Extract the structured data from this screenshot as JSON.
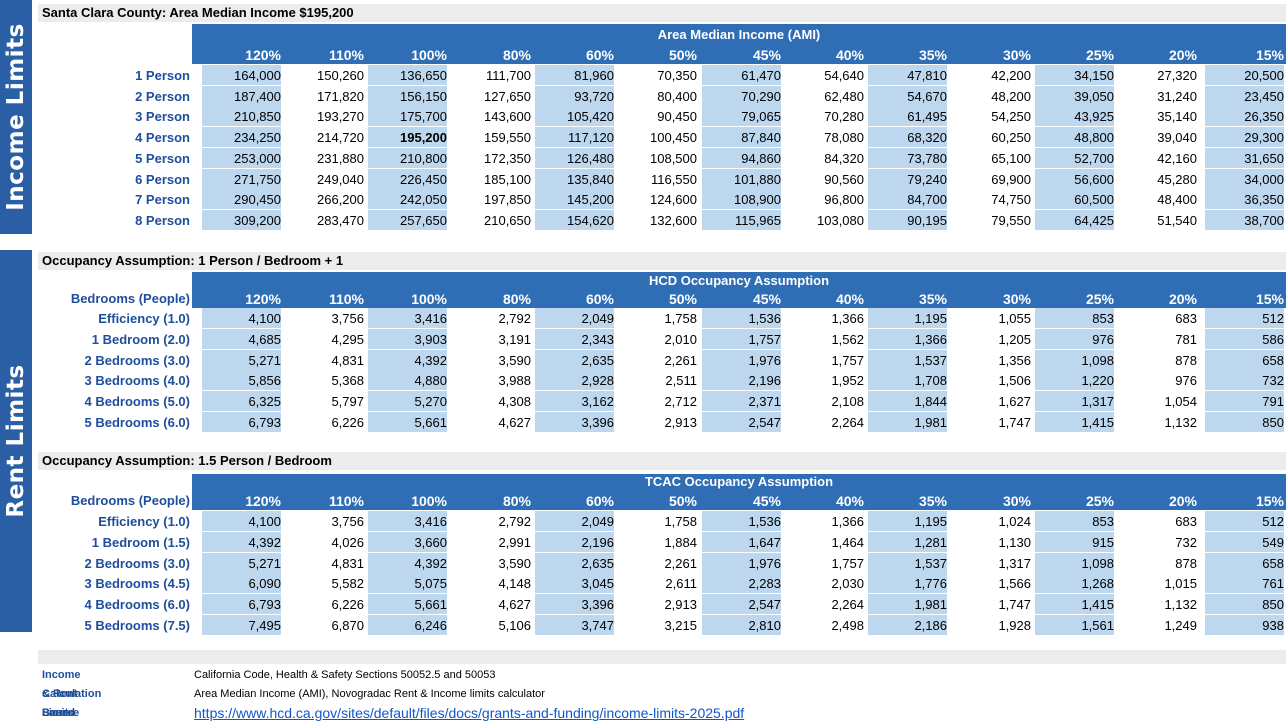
{
  "side_labels": {
    "income": "Income Limits",
    "rent": "Rent Limits"
  },
  "income": {
    "title": "Santa Clara County: Area Median Income $195,200",
    "band": "Area Median Income (AMI)",
    "columns": [
      "120%",
      "110%",
      "100%",
      "80%",
      "60%",
      "50%",
      "45%",
      "40%",
      "35%",
      "30%",
      "25%",
      "20%",
      "15%"
    ],
    "rows": [
      {
        "label": "1 Person",
        "values": [
          "164,000",
          "150,260",
          "136,650",
          "111,700",
          "81,960",
          "70,350",
          "61,470",
          "54,640",
          "47,810",
          "42,200",
          "34,150",
          "27,320",
          "20,500"
        ]
      },
      {
        "label": "2 Person",
        "values": [
          "187,400",
          "171,820",
          "156,150",
          "127,650",
          "93,720",
          "80,400",
          "70,290",
          "62,480",
          "54,670",
          "48,200",
          "39,050",
          "31,240",
          "23,450"
        ]
      },
      {
        "label": "3 Person",
        "values": [
          "210,850",
          "193,270",
          "175,700",
          "143,600",
          "105,420",
          "90,450",
          "79,065",
          "70,280",
          "61,495",
          "54,250",
          "43,925",
          "35,140",
          "26,350"
        ]
      },
      {
        "label": "4 Person",
        "values": [
          "234,250",
          "214,720",
          "195,200",
          "159,550",
          "117,120",
          "100,450",
          "87,840",
          "78,080",
          "68,320",
          "60,250",
          "48,800",
          "39,040",
          "29,300"
        ]
      },
      {
        "label": "5 Person",
        "values": [
          "253,000",
          "231,880",
          "210,800",
          "172,350",
          "126,480",
          "108,500",
          "94,860",
          "84,320",
          "73,780",
          "65,100",
          "52,700",
          "42,160",
          "31,650"
        ]
      },
      {
        "label": "6 Person",
        "values": [
          "271,750",
          "249,040",
          "226,450",
          "185,100",
          "135,840",
          "116,550",
          "101,880",
          "90,560",
          "79,240",
          "69,900",
          "56,600",
          "45,280",
          "34,000"
        ]
      },
      {
        "label": "7 Person",
        "values": [
          "290,450",
          "266,200",
          "242,050",
          "197,850",
          "145,200",
          "124,600",
          "108,900",
          "96,800",
          "84,700",
          "74,750",
          "60,500",
          "48,400",
          "36,350"
        ]
      },
      {
        "label": "8 Person",
        "values": [
          "309,200",
          "283,470",
          "257,650",
          "210,650",
          "154,620",
          "132,600",
          "115,965",
          "103,080",
          "90,195",
          "79,550",
          "64,425",
          "51,540",
          "38,700"
        ]
      }
    ]
  },
  "hcd": {
    "title": "Occupancy Assumption: 1 Person / Bedroom + 1",
    "band": "HCD Occupancy Assumption",
    "row_header": "Bedrooms (People)",
    "columns": [
      "120%",
      "110%",
      "100%",
      "80%",
      "60%",
      "50%",
      "45%",
      "40%",
      "35%",
      "30%",
      "25%",
      "20%",
      "15%"
    ],
    "rows": [
      {
        "label": "Efficiency (1.0)",
        "values": [
          "4,100",
          "3,756",
          "3,416",
          "2,792",
          "2,049",
          "1,758",
          "1,536",
          "1,366",
          "1,195",
          "1,055",
          "853",
          "683",
          "512"
        ]
      },
      {
        "label": "1 Bedroom (2.0)",
        "values": [
          "4,685",
          "4,295",
          "3,903",
          "3,191",
          "2,343",
          "2,010",
          "1,757",
          "1,562",
          "1,366",
          "1,205",
          "976",
          "781",
          "586"
        ]
      },
      {
        "label": "2 Bedrooms (3.0)",
        "values": [
          "5,271",
          "4,831",
          "4,392",
          "3,590",
          "2,635",
          "2,261",
          "1,976",
          "1,757",
          "1,537",
          "1,356",
          "1,098",
          "878",
          "658"
        ]
      },
      {
        "label": "3 Bedrooms (4.0)",
        "values": [
          "5,856",
          "5,368",
          "4,880",
          "3,988",
          "2,928",
          "2,511",
          "2,196",
          "1,952",
          "1,708",
          "1,506",
          "1,220",
          "976",
          "732"
        ]
      },
      {
        "label": "4 Bedrooms (5.0)",
        "values": [
          "6,325",
          "5,797",
          "5,270",
          "4,308",
          "3,162",
          "2,712",
          "2,371",
          "2,108",
          "1,844",
          "1,627",
          "1,317",
          "1,054",
          "791"
        ]
      },
      {
        "label": "5 Bedrooms (6.0)",
        "values": [
          "6,793",
          "6,226",
          "5,661",
          "4,627",
          "3,396",
          "2,913",
          "2,547",
          "2,264",
          "1,981",
          "1,747",
          "1,415",
          "1,132",
          "850"
        ]
      }
    ]
  },
  "tcac": {
    "title": "Occupancy Assumption: 1.5 Person / Bedroom",
    "band": "TCAC Occupancy Assumption",
    "row_header": "Bedrooms (People)",
    "columns": [
      "120%",
      "110%",
      "100%",
      "80%",
      "60%",
      "50%",
      "45%",
      "40%",
      "35%",
      "30%",
      "25%",
      "20%",
      "15%"
    ],
    "rows": [
      {
        "label": "Efficiency (1.0)",
        "values": [
          "4,100",
          "3,756",
          "3,416",
          "2,792",
          "2,049",
          "1,758",
          "1,536",
          "1,366",
          "1,195",
          "1,024",
          "853",
          "683",
          "512"
        ]
      },
      {
        "label": "1 Bedroom (1.5)",
        "values": [
          "4,392",
          "4,026",
          "3,660",
          "2,991",
          "2,196",
          "1,884",
          "1,647",
          "1,464",
          "1,281",
          "1,130",
          "915",
          "732",
          "549"
        ]
      },
      {
        "label": "2 Bedrooms (3.0)",
        "values": [
          "5,271",
          "4,831",
          "4,392",
          "3,590",
          "2,635",
          "2,261",
          "1,976",
          "1,757",
          "1,537",
          "1,317",
          "1,098",
          "878",
          "658"
        ]
      },
      {
        "label": "3 Bedrooms (4.5)",
        "values": [
          "6,090",
          "5,582",
          "5,075",
          "4,148",
          "3,045",
          "2,611",
          "2,283",
          "2,030",
          "1,776",
          "1,566",
          "1,268",
          "1,015",
          "761"
        ]
      },
      {
        "label": "4 Bedrooms (6.0)",
        "values": [
          "6,793",
          "6,226",
          "5,661",
          "4,627",
          "3,396",
          "2,913",
          "2,547",
          "2,264",
          "1,981",
          "1,747",
          "1,415",
          "1,132",
          "850"
        ]
      },
      {
        "label": "5 Bedrooms (7.5)",
        "values": [
          "7,495",
          "6,870",
          "6,246",
          "5,106",
          "3,747",
          "3,215",
          "2,810",
          "2,498",
          "2,186",
          "1,928",
          "1,561",
          "1,249",
          "938"
        ]
      }
    ]
  },
  "footer": {
    "rows": [
      {
        "key": "Income & Rent Limits",
        "value": "California Code, Health & Safety  Sections 50052.5 and 50053"
      },
      {
        "key": "Calculation Based",
        "value": "Area Median Income (AMI), Novogradac Rent & Income limits calculator"
      },
      {
        "key": "Source",
        "value": "https://www.hcd.ca.gov/sites/default/files/docs/grants-and-funding/income-limits-2025.pdf"
      }
    ]
  },
  "colors": {
    "band": "#2f6db5",
    "cell_highlight": "#bdd7ee",
    "side": "#2a5fa5",
    "label": "#1f4e9c"
  }
}
